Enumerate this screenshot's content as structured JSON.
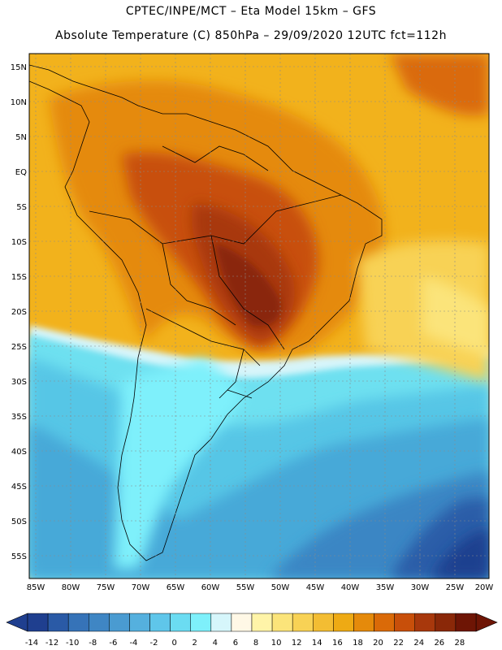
{
  "header": {
    "title_line1": "CPTEC/INPE/MCT –   Eta Model 15km – GFS",
    "title_line2": "Absolute Temperature (C) 850hPa – 29/09/2020 12UTC fct=112h"
  },
  "map": {
    "lat_labels": [
      "15N",
      "10N",
      "5N",
      "EQ",
      "5S",
      "10S",
      "15S",
      "20S",
      "25S",
      "30S",
      "35S",
      "40S",
      "45S",
      "50S",
      "55S"
    ],
    "lon_labels": [
      "85W",
      "80W",
      "75W",
      "70W",
      "65W",
      "60W",
      "55W",
      "50W",
      "45W",
      "40W",
      "35W",
      "30W",
      "25W",
      "20W"
    ]
  },
  "colorbar": {
    "tick_labels": [
      "-14",
      "-12",
      "-10",
      "-8",
      "-6",
      "-4",
      "-2",
      "0",
      "2",
      "4",
      "6",
      "8",
      "10",
      "12",
      "14",
      "16",
      "18",
      "20",
      "22",
      "24",
      "26",
      "28"
    ],
    "colors": [
      "#1f3f8f",
      "#2a5aa6",
      "#3673b8",
      "#3f86c4",
      "#4a9bd1",
      "#55b0de",
      "#5fc6ea",
      "#6bdcf2",
      "#7ef0fb",
      "#d6f6fb",
      "#fff8e6",
      "#fff4a8",
      "#fbe47a",
      "#f8d255",
      "#f3bd33",
      "#eeaa14",
      "#e58a0b",
      "#da6a08",
      "#c84f0a",
      "#a8380c",
      "#8a2808",
      "#6e1505"
    ]
  }
}
